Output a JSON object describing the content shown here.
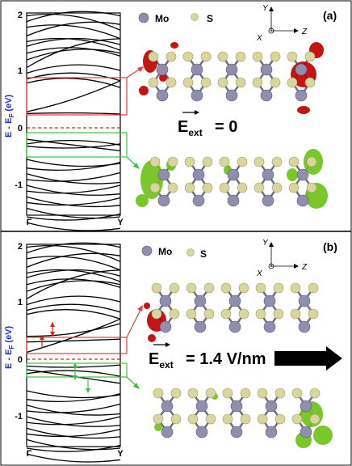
{
  "panels": [
    {
      "label": "(a)",
      "ylabel": "E - E",
      "ylabel_sub": "F",
      "ylabel_unit": " (eV)",
      "yticks": [
        "2",
        "1",
        "0",
        "-1"
      ],
      "xticks": [
        "Γ",
        "Y"
      ],
      "legend": [
        {
          "label": "Mo",
          "color": "#8f8fad"
        },
        {
          "label": "S",
          "color": "#d8d59e"
        }
      ],
      "axes": {
        "y": "Y",
        "x": "X",
        "z": "Z"
      },
      "field_prefix": "E",
      "field_sub": "ext",
      "field_value": "=  0",
      "isosurface_colors": {
        "upper": "#c00000",
        "lower": "#6fc21a"
      },
      "box_colors": {
        "upper": "#e53b3b",
        "lower": "#3fbf3f"
      },
      "arrow_color": null
    },
    {
      "label": "(b)",
      "ylabel": "E - E",
      "ylabel_sub": "F",
      "ylabel_unit": " (eV)",
      "yticks": [
        "2",
        "1",
        "0",
        "-1"
      ],
      "xticks": [
        "Γ",
        "Y"
      ],
      "legend": [
        {
          "label": "Mo",
          "color": "#8f8fad"
        },
        {
          "label": "S",
          "color": "#d8d59e"
        }
      ],
      "axes": {
        "y": "Y",
        "x": "X",
        "z": "Z"
      },
      "field_prefix": "E",
      "field_sub": "ext",
      "field_value": "= 1.4 V/nm",
      "isosurface_colors": {
        "upper": "#c00000",
        "lower": "#6fc21a"
      },
      "box_colors": {
        "upper": "#e53b3b",
        "lower": "#3fbf3f"
      },
      "arrow_color": "#000000"
    }
  ]
}
